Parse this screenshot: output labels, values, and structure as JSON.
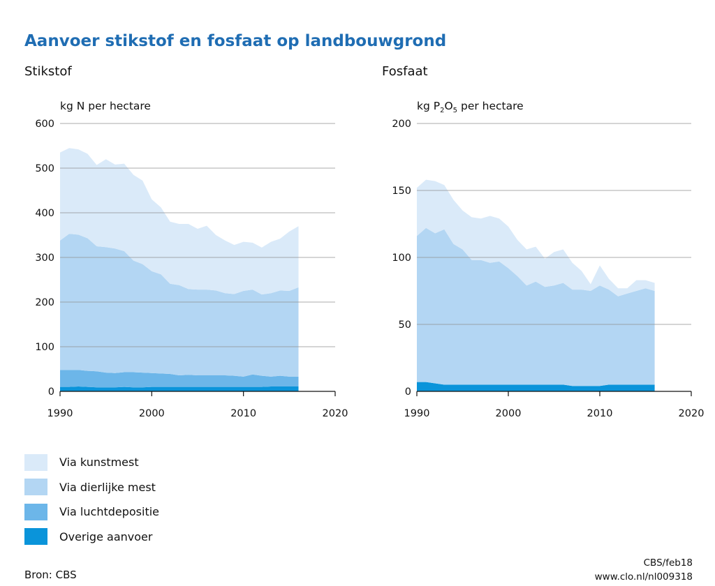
{
  "title": "Aanvoer stikstof en fosfaat op landbouwgrond",
  "source": "Bron: CBS",
  "credit": {
    "line1": "CBS/feb18",
    "line2": "www.clo.nl/nl009318"
  },
  "colors": {
    "kunstmest": "#daeaf9",
    "dierlijke_mest": "#b3d6f3",
    "luchtdepositie": "#6cb6e9",
    "overige": "#0a94da",
    "title": "#1f6db3"
  },
  "legend": [
    {
      "key": "kunstmest",
      "label": "Via kunstmest"
    },
    {
      "key": "dierlijke_mest",
      "label": "Via dierlijke mest"
    },
    {
      "key": "luchtdepositie",
      "label": "Via luchtdepositie"
    },
    {
      "key": "overige",
      "label": "Overige aanvoer"
    }
  ],
  "chart_data": [
    {
      "type": "area",
      "stacked": true,
      "title": "Stikstof",
      "ylabel": "kg N per hectare",
      "xlim": [
        1990,
        2020
      ],
      "ylim": [
        0,
        600
      ],
      "xticks": [
        1990,
        2000,
        2010,
        2020
      ],
      "yticks": [
        0,
        100,
        200,
        300,
        400,
        500,
        600
      ],
      "grid": "horizontal",
      "x": [
        1990,
        1991,
        1992,
        1993,
        1994,
        1995,
        1996,
        1997,
        1998,
        1999,
        2000,
        2001,
        2002,
        2003,
        2004,
        2005,
        2006,
        2007,
        2008,
        2009,
        2010,
        2011,
        2012,
        2013,
        2014,
        2015,
        2016
      ],
      "series": [
        {
          "key": "overige",
          "name": "Overige aanvoer",
          "values": [
            10,
            10,
            11,
            10,
            9,
            9,
            9,
            10,
            9,
            9,
            10,
            10,
            10,
            10,
            10,
            10,
            10,
            10,
            10,
            10,
            10,
            10,
            10,
            11,
            11,
            11,
            11
          ]
        },
        {
          "key": "luchtdepositie",
          "name": "Via luchtdepositie",
          "values": [
            38,
            38,
            37,
            36,
            36,
            33,
            32,
            33,
            34,
            33,
            31,
            30,
            29,
            26,
            27,
            26,
            26,
            26,
            26,
            25,
            23,
            28,
            25,
            22,
            24,
            22,
            22
          ]
        },
        {
          "key": "dierlijke_mest",
          "name": "Via dierlijke mest",
          "values": [
            290,
            305,
            303,
            297,
            280,
            281,
            279,
            271,
            250,
            243,
            228,
            222,
            202,
            202,
            192,
            192,
            192,
            190,
            184,
            183,
            192,
            190,
            182,
            187,
            191,
            192,
            200
          ]
        },
        {
          "key": "kunstmest",
          "name": "Via kunstmest",
          "values": [
            197,
            192,
            191,
            189,
            182,
            197,
            188,
            196,
            192,
            187,
            161,
            150,
            139,
            137,
            146,
            136,
            143,
            124,
            118,
            110,
            110,
            105,
            105,
            115,
            116,
            133,
            137
          ]
        }
      ]
    },
    {
      "type": "area",
      "stacked": true,
      "title": "Fosfaat",
      "ylabel_prefix": "kg P",
      "ylabel_sub1": "2",
      "ylabel_mid": "O",
      "ylabel_sub2": "5",
      "ylabel_suffix": " per hectare",
      "xlim": [
        1990,
        2020
      ],
      "ylim": [
        0,
        200
      ],
      "xticks": [
        1990,
        2000,
        2010,
        2020
      ],
      "yticks": [
        0,
        50,
        100,
        150,
        200
      ],
      "grid": "horizontal",
      "x": [
        1990,
        1991,
        1992,
        1993,
        1994,
        1995,
        1996,
        1997,
        1998,
        1999,
        2000,
        2001,
        2002,
        2003,
        2004,
        2005,
        2006,
        2007,
        2008,
        2009,
        2010,
        2011,
        2012,
        2013,
        2014,
        2015,
        2016
      ],
      "series": [
        {
          "key": "overige",
          "name": "Overige aanvoer",
          "values": [
            7,
            7,
            6,
            5,
            5,
            5,
            5,
            5,
            5,
            5,
            5,
            5,
            5,
            5,
            5,
            5,
            5,
            4,
            4,
            4,
            4,
            5,
            5,
            5,
            5,
            5,
            5
          ]
        },
        {
          "key": "dierlijke_mest",
          "name": "Via dierlijke mest",
          "values": [
            109,
            115,
            112,
            116,
            105,
            101,
            93,
            93,
            91,
            92,
            87,
            81,
            74,
            77,
            73,
            74,
            76,
            72,
            72,
            71,
            75,
            71,
            66,
            68,
            70,
            72,
            70
          ]
        },
        {
          "key": "kunstmest",
          "name": "Via kunstmest",
          "values": [
            36,
            36,
            39,
            33,
            33,
            29,
            32,
            31,
            35,
            32,
            31,
            27,
            27,
            26,
            21,
            25,
            25,
            20,
            14,
            5,
            15,
            8,
            6,
            4,
            8,
            6,
            6
          ]
        }
      ]
    }
  ]
}
